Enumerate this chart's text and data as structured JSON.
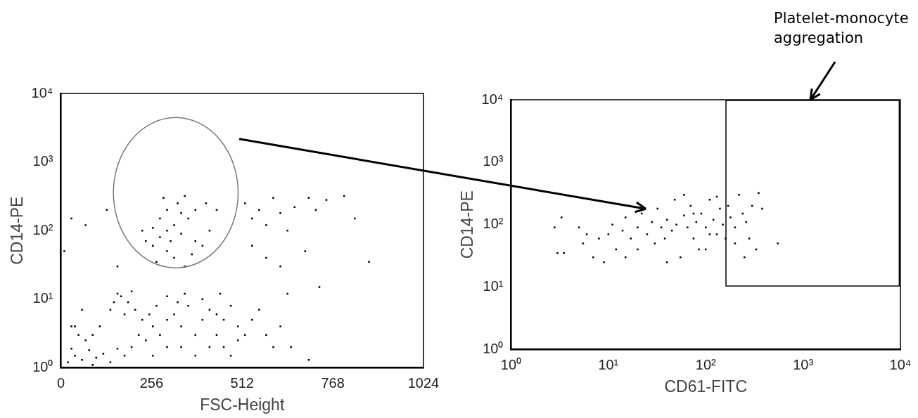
{
  "chart_data": [
    {
      "type": "scatter",
      "xlabel": "FSC-Height",
      "ylabel": "CD14-PE",
      "color": "#000000",
      "marker": "square",
      "grid": false,
      "legend": false,
      "log": "y",
      "xlim": [
        0,
        1024
      ],
      "xticks": [
        0,
        256,
        512,
        768,
        1024
      ],
      "ylim": [
        1,
        10000
      ],
      "yticks": [
        {
          "value": 1,
          "label": "10⁰"
        },
        {
          "value": 10,
          "label": "10¹"
        },
        {
          "value": 100,
          "label": "10²"
        },
        {
          "value": 1000,
          "label": "10³"
        },
        {
          "value": 10000,
          "label": "10⁴"
        }
      ],
      "x": [
        20,
        40,
        60,
        80,
        100,
        120,
        140,
        160,
        30,
        90,
        180,
        200,
        220,
        240,
        260,
        280,
        300,
        320,
        340,
        360,
        380,
        400,
        420,
        440,
        460,
        480,
        500,
        300,
        340,
        380,
        260,
        330,
        350,
        300,
        270,
        250,
        230,
        210,
        190,
        170,
        160,
        150,
        180,
        200,
        140,
        110,
        90,
        70,
        50,
        30,
        400,
        420,
        440,
        460,
        500,
        520,
        540,
        560,
        580,
        600,
        620,
        650,
        700,
        480,
        450,
        260,
        280,
        300,
        320,
        340,
        360,
        380,
        300,
        330,
        280,
        260,
        240,
        300,
        320,
        350,
        370,
        400,
        420,
        440,
        410,
        290,
        350,
        270,
        380,
        230,
        310,
        340,
        520,
        540,
        560,
        580,
        600,
        620,
        640,
        660,
        700,
        720,
        750,
        800,
        830,
        540,
        580,
        620,
        690,
        10,
        30,
        70,
        130,
        160,
        870,
        730,
        640,
        60,
        40
      ],
      "values": [
        1.2,
        1.5,
        1.3,
        1.8,
        1.4,
        1.6,
        1.2,
        1.9,
        1.9,
        1.1,
        1.5,
        2,
        3,
        2.5,
        4,
        3,
        5,
        6,
        4,
        8,
        3,
        5,
        2,
        3,
        2,
        1.5,
        2.5,
        2,
        2,
        1.5,
        1.5,
        9,
        12,
        11,
        8,
        6,
        5,
        7,
        9,
        11,
        12,
        9,
        6,
        13,
        7,
        4,
        3,
        2.5,
        3,
        4,
        10,
        7,
        6,
        5,
        4,
        3,
        5,
        7,
        3,
        2,
        4,
        2,
        1.3,
        8,
        12,
        60,
        80,
        100,
        120,
        90,
        150,
        70,
        200,
        250,
        150,
        110,
        70,
        50,
        40,
        30,
        45,
        60,
        100,
        200,
        250,
        300,
        320,
        35,
        200,
        100,
        70,
        180,
        250,
        150,
        200,
        120,
        300,
        180,
        100,
        220,
        300,
        200,
        280,
        320,
        150,
        60,
        40,
        30,
        50,
        50,
        150,
        120,
        200,
        30,
        35,
        15,
        12,
        7,
        4
      ]
    },
    {
      "type": "scatter",
      "xlabel": "CD61-FITC",
      "ylabel": "CD14-PE",
      "color": "#000000",
      "marker": "square",
      "grid": false,
      "legend": false,
      "log": "xy",
      "xlim": [
        1,
        10000
      ],
      "xticks": [
        {
          "value": 1,
          "label": "10⁰"
        },
        {
          "value": 10,
          "label": "10¹"
        },
        {
          "value": 100,
          "label": "10²"
        },
        {
          "value": 1000,
          "label": "10³"
        },
        {
          "value": 10000,
          "label": "10⁴"
        }
      ],
      "ylim": [
        1,
        10000
      ],
      "yticks": [
        {
          "value": 1,
          "label": "10⁰"
        },
        {
          "value": 10,
          "label": "10¹"
        },
        {
          "value": 100,
          "label": "10²"
        },
        {
          "value": 1000,
          "label": "10³"
        },
        {
          "value": 10000,
          "label": "10⁴"
        }
      ],
      "annotations": [
        "Platelet-monocyte aggregation"
      ],
      "x": [
        3,
        3.5,
        2.8,
        3.3,
        5,
        6,
        5.5,
        7,
        8,
        9,
        10,
        11,
        12,
        14,
        15,
        17,
        20,
        22,
        25,
        28,
        30,
        32,
        35,
        38,
        40,
        45,
        48,
        50,
        55,
        60,
        65,
        70,
        75,
        80,
        85,
        90,
        100,
        110,
        120,
        130,
        140,
        150,
        160,
        170,
        180,
        200,
        220,
        240,
        260,
        280,
        300,
        350,
        380,
        330,
        250,
        550,
        40,
        60,
        100,
        20,
        15,
        130,
        200,
        75,
        110
      ],
      "values": [
        35,
        35,
        90,
        130,
        90,
        70,
        50,
        30,
        60,
        25,
        70,
        100,
        40,
        80,
        130,
        60,
        90,
        150,
        70,
        110,
        50,
        180,
        90,
        60,
        120,
        80,
        250,
        100,
        30,
        140,
        90,
        200,
        60,
        110,
        40,
        150,
        90,
        250,
        120,
        70,
        180,
        100,
        60,
        200,
        130,
        90,
        300,
        150,
        110,
        60,
        200,
        320,
        180,
        40,
        30,
        50,
        25,
        300,
        40,
        40,
        30,
        280,
        50,
        150,
        70
      ]
    }
  ]
}
